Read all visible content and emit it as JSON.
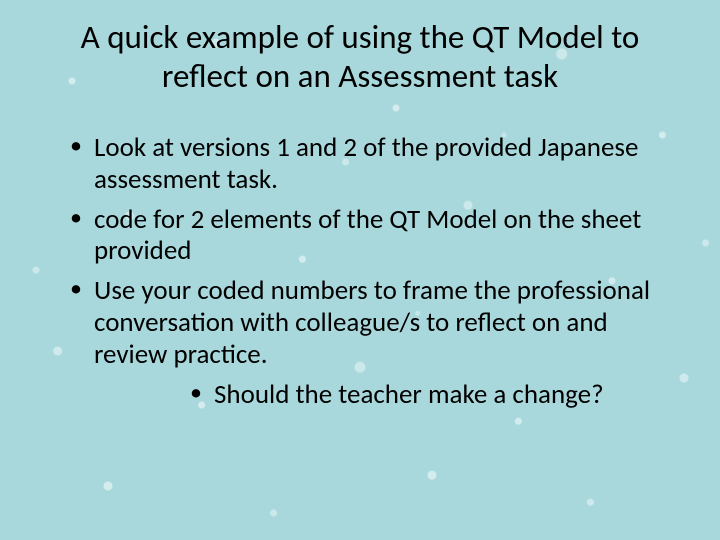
{
  "slide": {
    "background_color": "#a8d8dc",
    "text_color": "#000000",
    "droplet_color": "rgba(255,255,255,0.45)",
    "font_family": "Calibri",
    "title": {
      "text": "A quick example of using the QT Model to reflect on an Assessment task",
      "fontsize": 33,
      "weight": 400,
      "align": "center"
    },
    "bullets": [
      {
        "level": 1,
        "text": "Look at versions 1 and 2 of the provided Japanese assessment task."
      },
      {
        "level": 1,
        "text": "code for 2 elements of the QT Model on the sheet provided"
      },
      {
        "level": 1,
        "text": "Use your coded numbers to frame the professional conversation with colleague/s to reflect on and review practice."
      },
      {
        "level": 2,
        "text": "Should the teacher make a change?"
      }
    ],
    "bullet_fontsize": 27,
    "bullet_marker": "•"
  }
}
